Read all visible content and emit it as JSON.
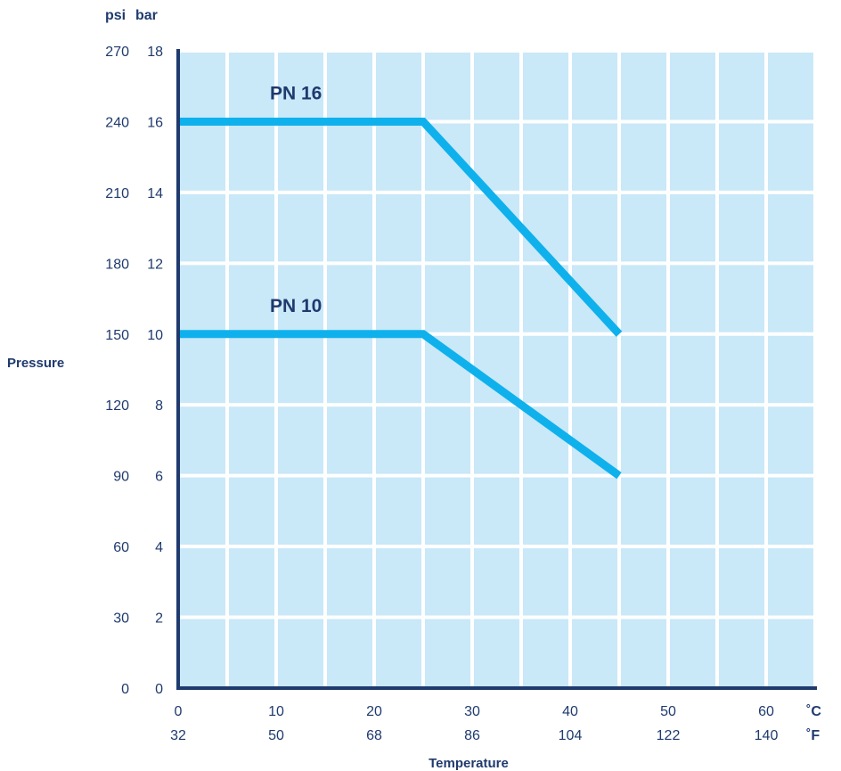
{
  "chart_data": {
    "type": "line",
    "xlabel": "Temperature",
    "ylabel": "Pressure",
    "x_unit_primary": "˚C",
    "x_unit_secondary": "˚F",
    "y_unit_primary": "bar",
    "y_unit_secondary": "psi",
    "xlim": [
      0,
      65
    ],
    "ylim": [
      0,
      18
    ],
    "x_ticks": [
      0,
      10,
      20,
      30,
      40,
      50,
      60
    ],
    "x_ticks_secondary": [
      "32",
      "50",
      "68",
      "86",
      "104",
      "122",
      "140"
    ],
    "y_ticks": [
      0,
      2,
      4,
      6,
      8,
      10,
      12,
      14,
      16,
      18
    ],
    "y_ticks_secondary": [
      "0",
      "30",
      "60",
      "90",
      "120",
      "150",
      "180",
      "210",
      "240",
      "270"
    ],
    "grid": true,
    "series": [
      {
        "name": "PN 16",
        "x": [
          0,
          25,
          45
        ],
        "y": [
          16,
          16,
          10
        ]
      },
      {
        "name": "PN 10",
        "x": [
          0,
          25,
          45
        ],
        "y": [
          10,
          10,
          6
        ]
      }
    ],
    "colors": {
      "plot_background": "#c9e8f8",
      "grid": "#ffffff",
      "axis": "#1f3a6e",
      "line": "#0fb1ec",
      "text": "#1f3a6e"
    }
  }
}
